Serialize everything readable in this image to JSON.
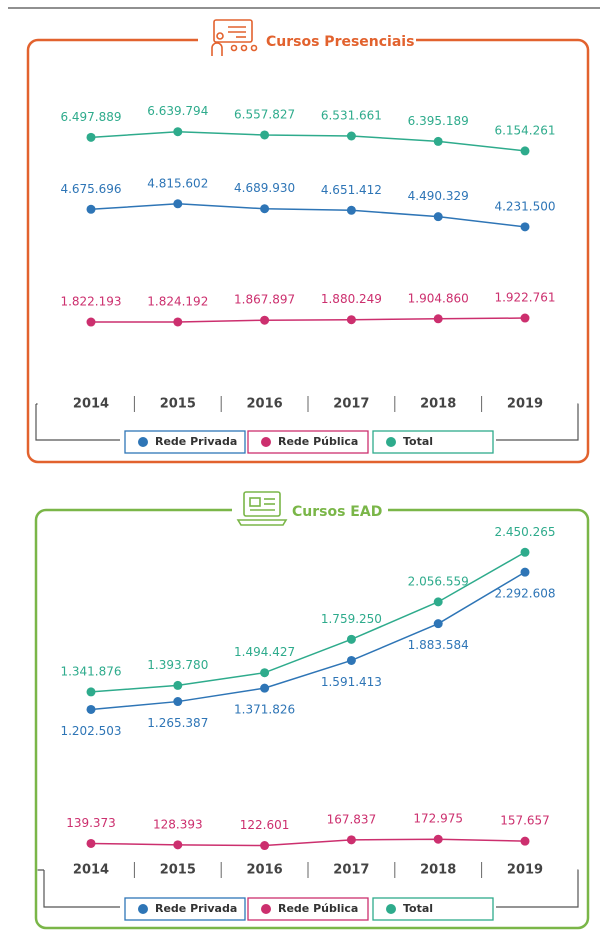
{
  "chart_data": [
    {
      "type": "line",
      "title": "Cursos Presenciais",
      "categories": [
        "2014",
        "2015",
        "2016",
        "2017",
        "2018",
        "2019"
      ],
      "ylim": [
        0,
        8000000
      ],
      "series": [
        {
          "name": "Rede Privada",
          "color": "#2e75b6",
          "values": [
            4675696,
            4815602,
            4689930,
            4651412,
            4490329,
            4231500
          ],
          "value_labels": [
            "4.675.696",
            "4.815.602",
            "4.689.930",
            "4.651.412",
            "4.490.329",
            "4.231.500"
          ]
        },
        {
          "name": "Rede Pública",
          "color": "#cc2f6e",
          "values": [
            1822193,
            1824192,
            1867897,
            1880249,
            1904860,
            1922761
          ],
          "value_labels": [
            "1.822.193",
            "1.824.192",
            "1.867.897",
            "1.880.249",
            "1.904.860",
            "1.922.761"
          ]
        },
        {
          "name": "Total",
          "color": "#2eab8c",
          "values": [
            6497889,
            6639794,
            6557827,
            6531661,
            6395189,
            6154261
          ],
          "value_labels": [
            "6.497.889",
            "6.639.794",
            "6.557.827",
            "6.531.661",
            "6.395.189",
            "6.154.261"
          ]
        }
      ]
    },
    {
      "type": "line",
      "title": "Cursos EAD",
      "categories": [
        "2014",
        "2015",
        "2016",
        "2017",
        "2018",
        "2019"
      ],
      "ylim": [
        0,
        3000000
      ],
      "series": [
        {
          "name": "Rede Privada",
          "color": "#2e75b6",
          "values": [
            1202503,
            1265387,
            1371826,
            1591413,
            1883584,
            2292608
          ],
          "value_labels": [
            "1.202.503",
            "1.265.387",
            "1.371.826",
            "1.591.413",
            "1.883.584",
            "2.292.608"
          ]
        },
        {
          "name": "Rede Pública",
          "color": "#cc2f6e",
          "values": [
            139373,
            128393,
            122601,
            167837,
            172975,
            157657
          ],
          "value_labels": [
            "139.373",
            "128.393",
            "122.601",
            "167.837",
            "172.975",
            "157.657"
          ]
        },
        {
          "name": "Total",
          "color": "#2eab8c",
          "values": [
            1341876,
            1393780,
            1494427,
            1759250,
            2056559,
            2450265
          ],
          "value_labels": [
            "1.341.876",
            "1.393.780",
            "1.494.427",
            "1.759.250",
            "2.056.559",
            "2.450.265"
          ]
        }
      ]
    }
  ]
}
